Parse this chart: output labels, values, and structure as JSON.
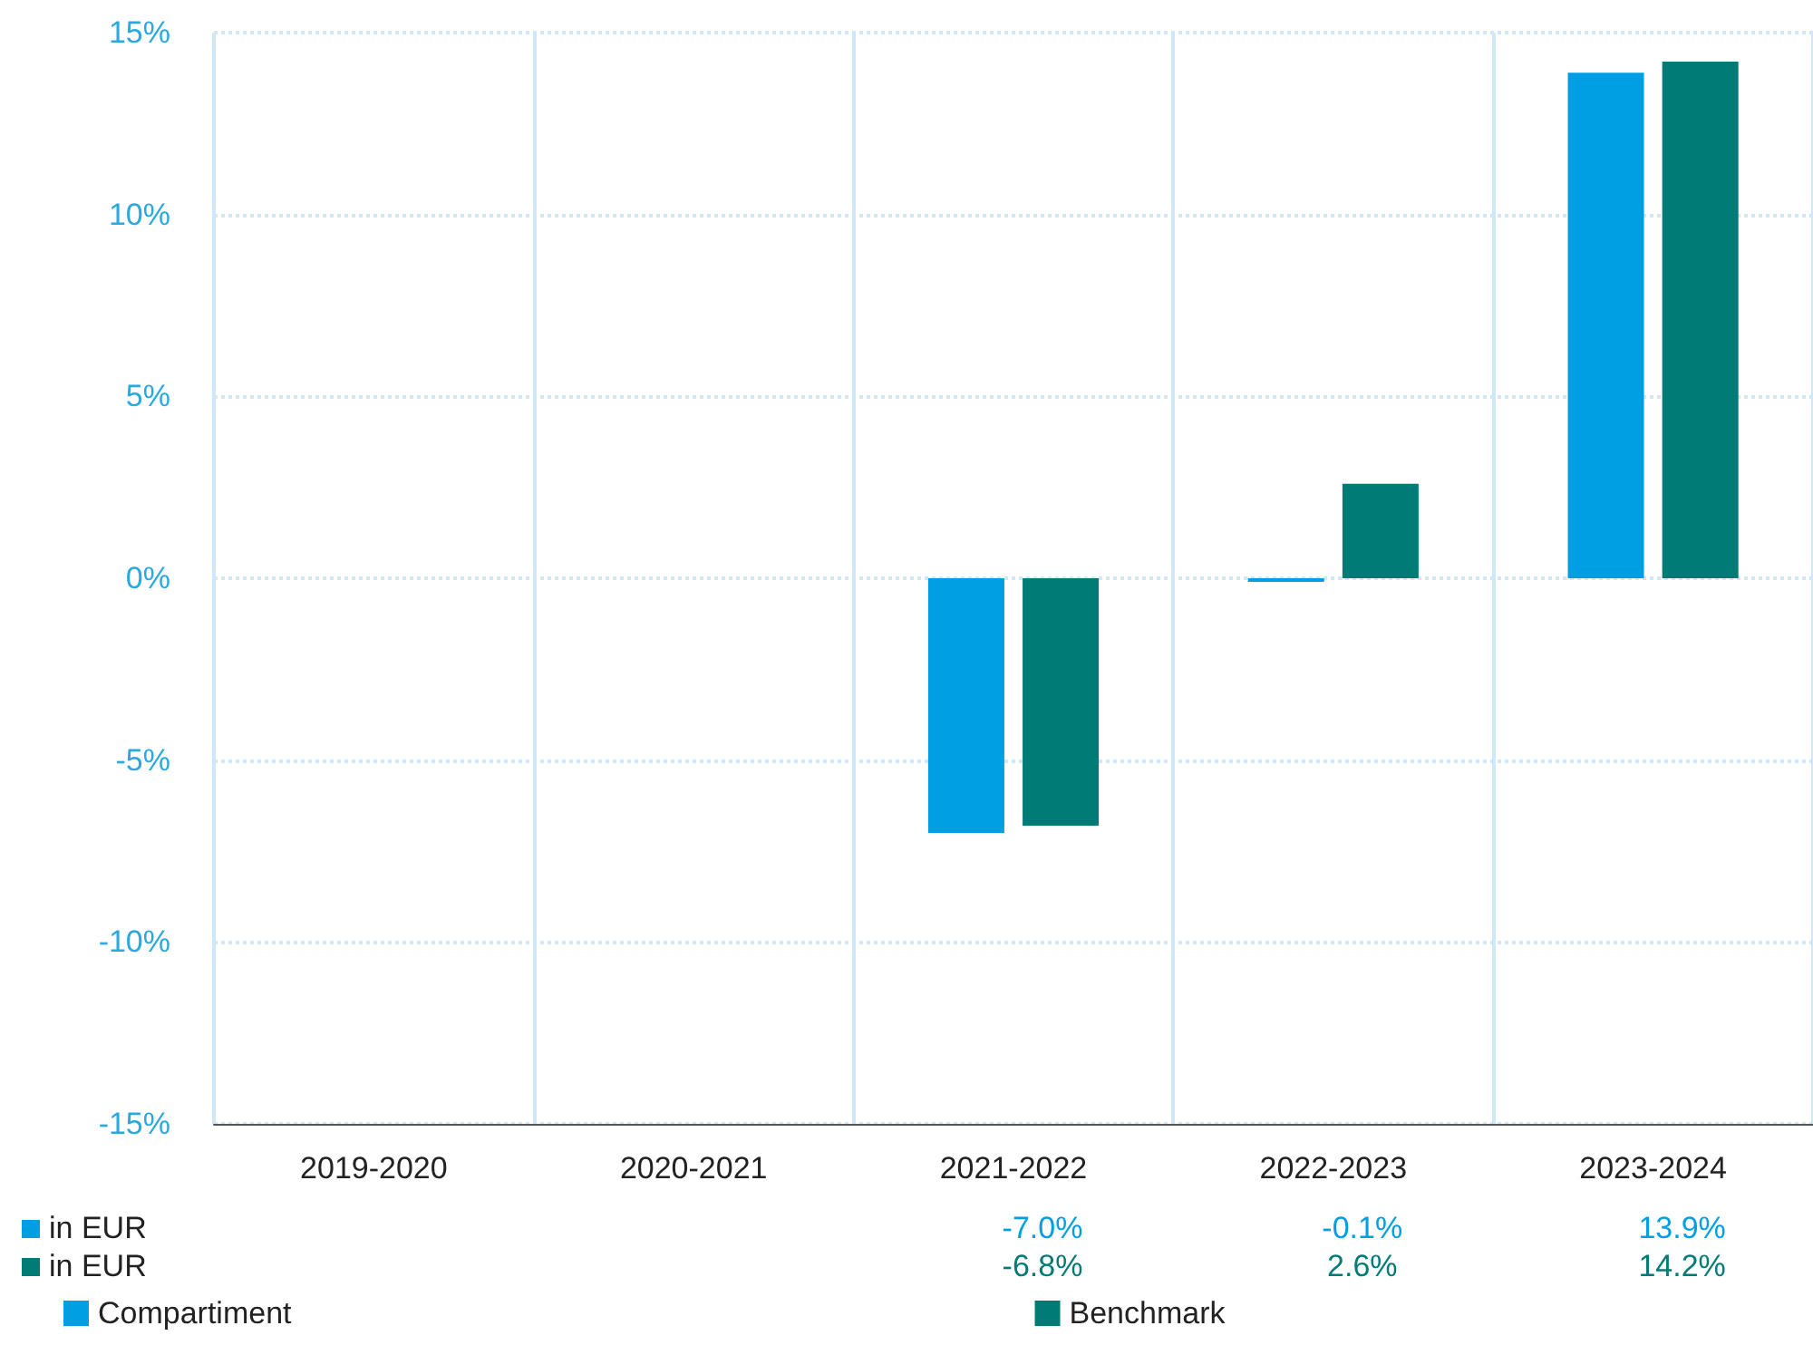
{
  "chart_data": {
    "type": "bar",
    "categories": [
      "2019-2020",
      "2020-2021",
      "2021-2022",
      "2022-2023",
      "2023-2024"
    ],
    "series": [
      {
        "name": "Compartiment",
        "color": "#009fe3",
        "values": [
          null,
          null,
          -7.0,
          -0.1,
          13.9
        ],
        "value_labels": [
          null,
          null,
          "-7.0%",
          "-0.1%",
          "13.9%"
        ]
      },
      {
        "name": "Benchmark",
        "color": "#007b76",
        "values": [
          null,
          null,
          -6.8,
          2.6,
          14.2
        ],
        "value_labels": [
          null,
          null,
          "-6.8%",
          "2.6%",
          "14.2%"
        ]
      }
    ],
    "ylim": [
      -15,
      15
    ],
    "yticks": [
      {
        "value": -15,
        "label": "-15%"
      },
      {
        "value": -10,
        "label": "-10%"
      },
      {
        "value": -5,
        "label": "-5%"
      },
      {
        "value": 0,
        "label": "0%"
      },
      {
        "value": 5,
        "label": "5%"
      },
      {
        "value": 10,
        "label": "10%"
      },
      {
        "value": 15,
        "label": "15%"
      }
    ],
    "annotations": [
      "in EUR",
      "in EUR"
    ],
    "grid": true,
    "legend": "bottom"
  }
}
